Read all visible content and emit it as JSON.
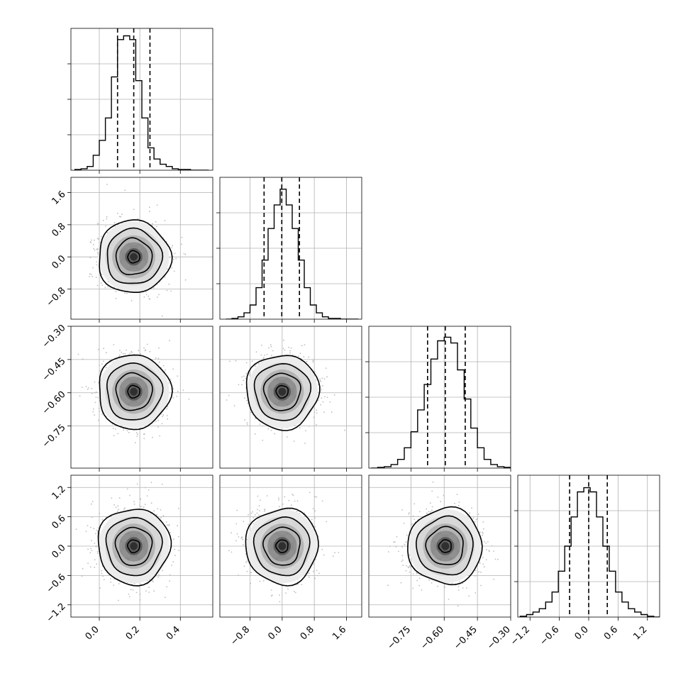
{
  "chart_data": {
    "type": "corner",
    "grid": true,
    "num_params": 4,
    "params": [
      {
        "range": [
          -0.14,
          0.56
        ],
        "ticks": [
          0.0,
          0.2,
          0.4
        ],
        "tick_labels": [
          "0.0",
          "0.2",
          "0.4"
        ],
        "quantiles": [
          0.09,
          0.17,
          0.25
        ],
        "hist_bins": [
          -0.12,
          -0.09,
          -0.06,
          -0.03,
          0.0,
          0.03,
          0.06,
          0.09,
          0.12,
          0.15,
          0.18,
          0.21,
          0.24,
          0.27,
          0.3,
          0.33,
          0.36,
          0.39,
          0.42,
          0.45,
          0.48,
          0.51
        ],
        "hist_counts": [
          1,
          2,
          5,
          20,
          40,
          70,
          125,
          175,
          180,
          175,
          120,
          70,
          30,
          15,
          8,
          5,
          2,
          1,
          1,
          0,
          0,
          0
        ],
        "hist_ymax": 190
      },
      {
        "range": [
          -1.55,
          1.98
        ],
        "ticks": [
          -0.8,
          0.0,
          0.8,
          1.6
        ],
        "tick_labels": [
          "−0.8",
          "0.0",
          "0.8",
          "1.6"
        ],
        "quantiles": [
          -0.45,
          -0.01,
          0.43
        ],
        "hist_bins": [
          -1.4,
          -1.25,
          -1.1,
          -0.95,
          -0.8,
          -0.65,
          -0.5,
          -0.35,
          -0.2,
          -0.05,
          0.1,
          0.25,
          0.4,
          0.55,
          0.7,
          0.85,
          1.0,
          1.15,
          1.3,
          1.45,
          1.6,
          1.75
        ],
        "hist_counts": [
          0,
          1,
          3,
          8,
          18,
          40,
          75,
          115,
          145,
          165,
          145,
          115,
          75,
          40,
          18,
          8,
          3,
          1,
          1,
          0,
          0,
          0
        ],
        "hist_ymax": 180
      },
      {
        "range": [
          -0.94,
          -0.3
        ],
        "ticks": [
          -0.75,
          -0.6,
          -0.45,
          -0.3
        ],
        "tick_labels": [
          "−0.75",
          "−0.60",
          "−0.45",
          "−0.30"
        ],
        "quantiles": [
          -0.675,
          -0.595,
          -0.505
        ],
        "hist_bins": [
          -0.93,
          -0.9,
          -0.87,
          -0.84,
          -0.81,
          -0.78,
          -0.75,
          -0.72,
          -0.69,
          -0.66,
          -0.63,
          -0.6,
          -0.57,
          -0.54,
          -0.51,
          -0.48,
          -0.45,
          -0.42,
          -0.39,
          -0.36,
          -0.33
        ],
        "hist_counts": [
          0,
          1,
          2,
          5,
          12,
          28,
          50,
          80,
          115,
          150,
          175,
          180,
          172,
          135,
          95,
          55,
          28,
          12,
          5,
          2,
          1
        ],
        "hist_ymax": 195
      },
      {
        "range": [
          -1.45,
          1.45
        ],
        "ticks": [
          -1.2,
          -0.6,
          0.0,
          0.6,
          1.2
        ],
        "tick_labels": [
          "−1.2",
          "−0.6",
          "0.0",
          "0.6",
          "1.2"
        ],
        "quantiles": [
          -0.39,
          0.0,
          0.38
        ],
        "hist_bins": [
          -1.4,
          -1.27,
          -1.14,
          -1.01,
          -0.88,
          -0.75,
          -0.62,
          -0.49,
          -0.36,
          -0.23,
          -0.1,
          0.03,
          0.16,
          0.29,
          0.42,
          0.55,
          0.68,
          0.81,
          0.94,
          1.07,
          1.2,
          1.33
        ],
        "hist_counts": [
          1,
          3,
          6,
          10,
          18,
          30,
          55,
          85,
          120,
          150,
          155,
          150,
          120,
          85,
          55,
          30,
          18,
          10,
          6,
          3,
          1,
          0
        ],
        "hist_ymax": 170
      }
    ],
    "centers": [
      0.17,
      0.0,
      -0.595,
      0.0
    ],
    "sigmas": [
      0.085,
      0.43,
      0.08,
      0.37
    ]
  }
}
